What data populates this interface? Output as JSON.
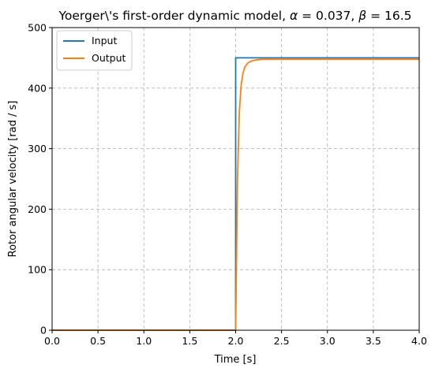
{
  "chart_data": {
    "type": "line",
    "title_parts": {
      "text": "Yoerger\\'s first-order dynamic model, ",
      "alpha_sym": "α",
      "alpha_eq": " = 0.037, ",
      "beta_sym": "β",
      "beta_eq": " = 16.5"
    },
    "xlabel": "Time [s]",
    "ylabel": "Rotor angular velocity [rad / s]",
    "xlim": [
      0,
      4
    ],
    "ylim": [
      0,
      500
    ],
    "xticks": [
      "0.0",
      "0.5",
      "1.0",
      "1.5",
      "2.0",
      "2.5",
      "3.0",
      "3.5",
      "4.0"
    ],
    "yticks": [
      "0",
      "100",
      "200",
      "300",
      "400",
      "500"
    ],
    "grid": true,
    "legend_position": "top-left",
    "series": [
      {
        "name": "Input",
        "color": "#1f77b4",
        "x": [
          0,
          2.0,
          2.0,
          4.0
        ],
        "y": [
          0,
          0,
          450,
          450
        ]
      },
      {
        "name": "Output",
        "color": "#ff7f0e",
        "x": [
          0,
          2.0,
          2.02,
          2.04,
          2.06,
          2.08,
          2.1,
          2.13,
          2.16,
          2.2,
          2.25,
          2.3,
          2.4,
          2.6,
          3.0,
          4.0
        ],
        "y": [
          0,
          0,
          250,
          360,
          405,
          425,
          435,
          441,
          444,
          446,
          447,
          447.5,
          447.5,
          447.5,
          447.5,
          447.5
        ]
      }
    ]
  }
}
